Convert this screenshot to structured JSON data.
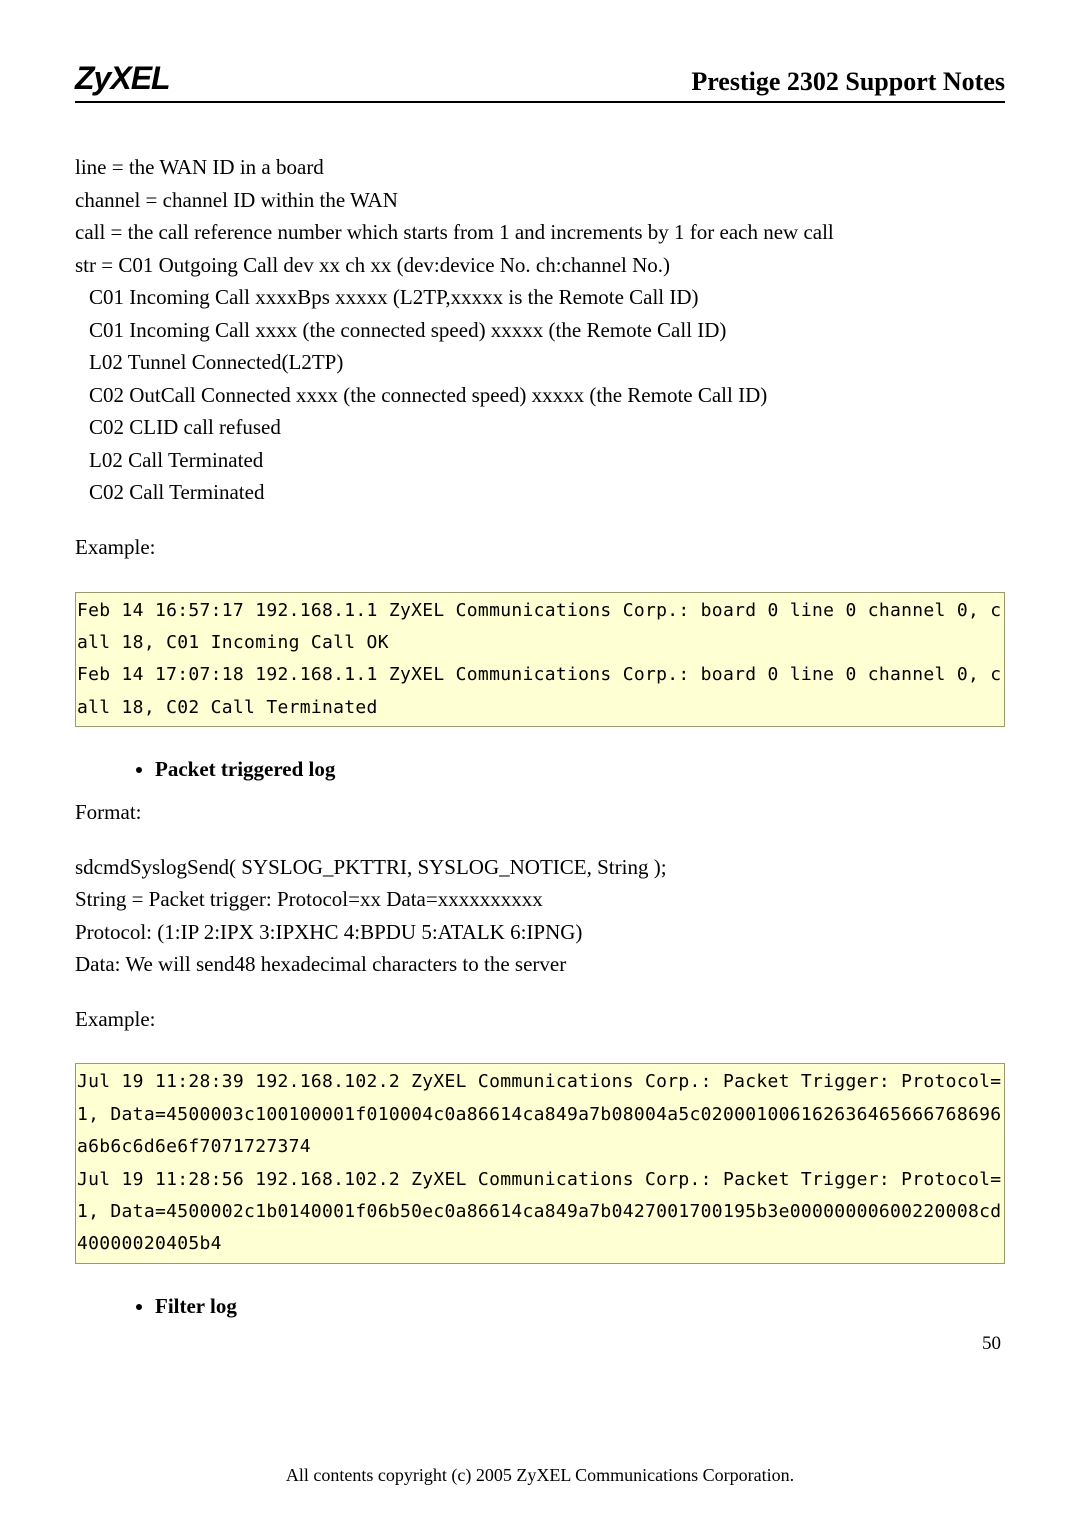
{
  "header": {
    "logo": "ZyXEL",
    "title": "Prestige 2302 Support Notes"
  },
  "defs": {
    "line": "line = the WAN ID in a board",
    "channel": "channel = channel ID within the WAN",
    "call": "call = the call reference number which starts from 1 and increments by 1 for each new call",
    "str": "str = C01 Outgoing Call dev xx ch xx (dev:device No. ch:channel No.)",
    "c01in1": "C01 Incoming Call xxxxBps xxxxx (L2TP,xxxxx is the Remote Call ID)",
    "c01in2": "C01 Incoming Call xxxx (the connected speed) xxxxx (the Remote Call ID)",
    "l02tun": "L02 Tunnel Connected(L2TP)",
    "c02out": "C02 OutCall Connected xxxx (the connected speed) xxxxx (the Remote Call ID)",
    "c02clid": "C02 CLID call refused",
    "l02term": "L02 Call Terminated",
    "c02term": "C02 Call Terminated"
  },
  "example1": {
    "label": "Example:",
    "line1": "Feb 14 16:57:17 192.168.1.1 ZyXEL Communications Corp.: board 0 line 0 channel 0, call 18, C01 Incoming Call OK",
    "line2": "Feb 14 17:07:18 192.168.1.1 ZyXEL Communications Corp.: board 0 line 0 channel 0, call 18, C02 Call Terminated"
  },
  "section_pkt": {
    "heading": "Packet triggered log",
    "format_label": "Format:",
    "l1": "sdcmdSyslogSend( SYSLOG_PKTTRI, SYSLOG_NOTICE, String );",
    "l2": "String = Packet trigger: Protocol=xx Data=xxxxxxxxxx",
    "l3": "Protocol: (1:IP 2:IPX 3:IPXHC 4:BPDU 5:ATALK 6:IPNG)",
    "l4": "Data: We will send48 hexadecimal characters to the server",
    "example_label": "Example:",
    "code1": "Jul 19 11:28:39 192.168.102.2 ZyXEL Communications Corp.: Packet Trigger: Protocol=1, Data=4500003c100100001f010004c0a86614ca849a7b08004a5c020001006162636465666768696a6b6c6d6e6f7071727374",
    "code2": "Jul 19 11:28:56 192.168.102.2 ZyXEL Communications Corp.: Packet Trigger: Protocol=1, Data=4500002c1b0140001f06b50ec0a86614ca849a7b0427001700195b3e00000000600220008cd40000020405b4"
  },
  "section_filter": {
    "heading": "Filter log"
  },
  "footer": {
    "text": "All contents copyright (c) 2005 ZyXEL Communications Corporation.",
    "page": "50"
  }
}
